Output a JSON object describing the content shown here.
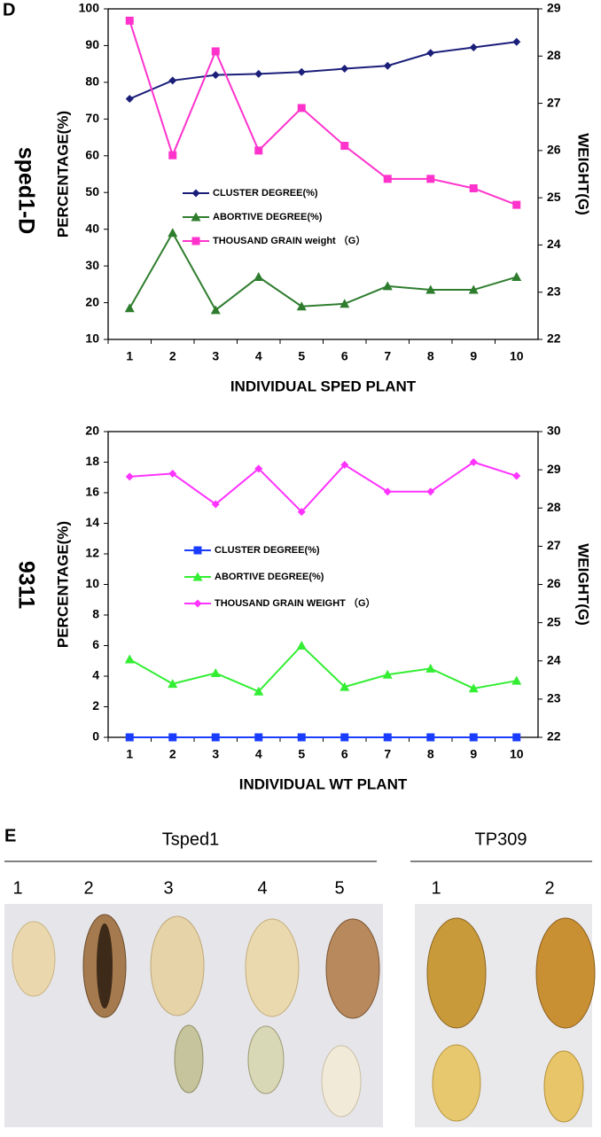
{
  "panels": {
    "d": "D",
    "e": "E"
  },
  "row_labels": [
    "sped1-D",
    "9311"
  ],
  "chart_data": [
    {
      "type": "line",
      "categories": [
        "1",
        "2",
        "3",
        "4",
        "5",
        "6",
        "7",
        "8",
        "9",
        "10"
      ],
      "xlabel": "INDIVIDUAL SPED PLANT",
      "ylabel": "PERCENTAGE(%)",
      "y2label": "WEIGHT(G)",
      "ylim": [
        10,
        100
      ],
      "yticks": [
        10,
        20,
        30,
        40,
        50,
        60,
        70,
        80,
        90,
        100
      ],
      "y2lim": [
        22,
        29
      ],
      "y2ticks": [
        22,
        23,
        24,
        25,
        26,
        27,
        28,
        29
      ],
      "series": [
        {
          "name": "CLUSTER DEGREE(%)",
          "color": "#1b1f7a",
          "marker": "diamond",
          "values": [
            75.5,
            80.5,
            82,
            82.3,
            82.8,
            83.7,
            84.5,
            88,
            89.5,
            91
          ]
        },
        {
          "name": "ABORTIVE DEGREE(%)",
          "color": "#2e7d2e",
          "marker": "triangle",
          "values": [
            18.5,
            39,
            18,
            27,
            19,
            19.7,
            24.5,
            23.5,
            23.5,
            27
          ]
        },
        {
          "name": "THOUSAND GRAIN weight （G）",
          "color": "#ff33cc",
          "marker": "square",
          "axis": "y2",
          "values": [
            28.75,
            25.9,
            28.1,
            26,
            26.9,
            26.1,
            25.4,
            25.4,
            25.2,
            24.85
          ]
        }
      ]
    },
    {
      "type": "line",
      "categories": [
        "1",
        "2",
        "3",
        "4",
        "5",
        "6",
        "7",
        "8",
        "9",
        "10"
      ],
      "xlabel": "INDIVIDUAL WT PLANT",
      "ylabel": "PERCENTAGE(%)",
      "y2label": "WEIGHT(G)",
      "ylim": [
        0,
        20
      ],
      "yticks": [
        0,
        2,
        4,
        6,
        8,
        10,
        12,
        14,
        16,
        18,
        20
      ],
      "y2lim": [
        22,
        30
      ],
      "y2ticks": [
        22,
        23,
        24,
        25,
        26,
        27,
        28,
        29,
        30
      ],
      "series": [
        {
          "name": "CLUSTER DEGREE(%)",
          "color": "#1a3cff",
          "marker": "square",
          "values": [
            0,
            0,
            0,
            0,
            0,
            0,
            0,
            0,
            0,
            0
          ]
        },
        {
          "name": "ABORTIVE DEGREE(%)",
          "color": "#33ee33",
          "marker": "triangle",
          "values": [
            5.1,
            3.5,
            4.2,
            3,
            6,
            3.3,
            4.1,
            4.5,
            3.2,
            3.7
          ]
        },
        {
          "name": "THOUSAND GRAIN WEIGHT （G）",
          "color": "#ff33ff",
          "marker": "diamond",
          "axis": "y2",
          "values": [
            28.82,
            28.9,
            28.1,
            29.03,
            27.9,
            29.13,
            28.43,
            28.43,
            29.2,
            28.84
          ]
        }
      ]
    }
  ],
  "photo": {
    "groups": [
      {
        "title": "Tsped1",
        "items": [
          "1",
          "2",
          "3",
          "4",
          "5"
        ]
      },
      {
        "title": "TP309",
        "items": [
          "1",
          "2"
        ]
      }
    ]
  }
}
